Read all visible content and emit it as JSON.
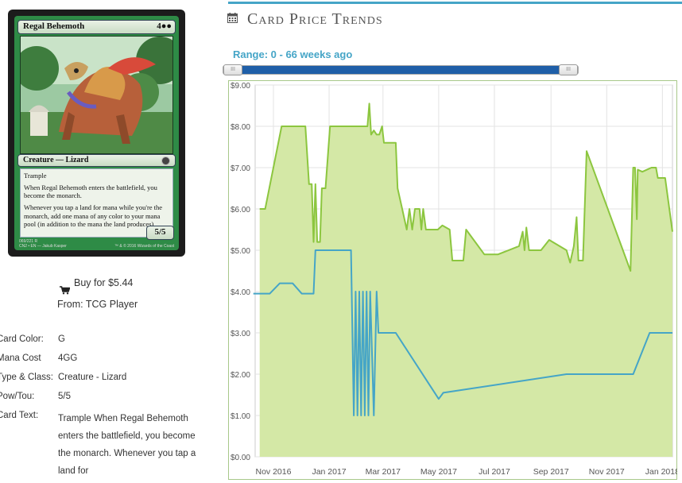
{
  "card": {
    "name": "Regal Behemoth",
    "mana": "4●●",
    "type_line": "Creature — Lizard",
    "rules": [
      "Trample",
      "When Regal Behemoth enters the battlefield, you become the monarch.",
      "Whenever you tap a land for mana while you're the monarch, add one mana of any color to your mana pool (in addition to the mana the land produces)."
    ],
    "pt": "5/5",
    "collector": "069/221 R",
    "set_line": "CN2 • EN — Jakub Kasper",
    "copyright": "™ & © 2016 Wizards of the Coast"
  },
  "buy": {
    "label": "Buy for $5.44",
    "from": "From: TCG Player"
  },
  "details": [
    {
      "label": "Card Color:",
      "value": "G"
    },
    {
      "label": "Mana Cost",
      "value": "4GG"
    },
    {
      "label": "Type & Class:",
      "value": "Creature - Lizard"
    },
    {
      "label": "Pow/Tou:",
      "value": "5/5"
    },
    {
      "label": "Card Text:",
      "value": "Trample When Regal Behemoth enters the battlefield, you become the monarch. Whenever you tap a land for"
    }
  ],
  "section_title": "Card Price Trends",
  "range": {
    "label": "Range: 0 - 66 weeks ago",
    "min": 0,
    "max": 66,
    "handle_glyph": "III"
  },
  "colors": {
    "accent": "#45a5c7",
    "green_line": "#8cc63f",
    "green_fill": "#d4e8a6",
    "blue_line": "#45a5c7",
    "slider": "#1f5fa8"
  },
  "chart_data": {
    "type": "area",
    "ylim": [
      0,
      9
    ],
    "yticks": [
      "$0.00",
      "$1.00",
      "$2.00",
      "$3.00",
      "$4.00",
      "$5.00",
      "$6.00",
      "$7.00",
      "$8.00",
      "$9.00"
    ],
    "xlim": [
      "2016-10-12",
      "2018-01-12"
    ],
    "xticks": [
      {
        "date": "2016-11-01",
        "label": "Nov 2016"
      },
      {
        "date": "2017-01-01",
        "label": "Jan 2017"
      },
      {
        "date": "2017-03-01",
        "label": "Mar 2017"
      },
      {
        "date": "2017-05-01",
        "label": "May 2017"
      },
      {
        "date": "2017-07-01",
        "label": "Jul 2017"
      },
      {
        "date": "2017-09-01",
        "label": "Sep 2017"
      },
      {
        "date": "2017-11-01",
        "label": "Nov 2017"
      },
      {
        "date": "2018-01-01",
        "label": "Jan 2018"
      }
    ],
    "grid": true,
    "series": [
      {
        "fill": true,
        "points": [
          [
            "2016-10-17",
            6.0
          ],
          [
            "2016-10-23",
            6.0
          ],
          [
            "2016-11-10",
            8.0
          ],
          [
            "2016-12-06",
            8.0
          ],
          [
            "2016-12-10",
            6.6
          ],
          [
            "2016-12-13",
            6.6
          ],
          [
            "2016-12-15",
            5.2
          ],
          [
            "2016-12-17",
            6.6
          ],
          [
            "2016-12-19",
            5.2
          ],
          [
            "2016-12-22",
            5.2
          ],
          [
            "2016-12-24",
            6.5
          ],
          [
            "2016-12-28",
            6.5
          ],
          [
            "2017-01-02",
            8.0
          ],
          [
            "2017-02-12",
            8.0
          ],
          [
            "2017-02-14",
            8.55
          ],
          [
            "2017-02-16",
            7.8
          ],
          [
            "2017-02-19",
            7.9
          ],
          [
            "2017-02-22",
            7.8
          ],
          [
            "2017-02-25",
            7.8
          ],
          [
            "2017-02-28",
            8.0
          ],
          [
            "2017-03-02",
            7.6
          ],
          [
            "2017-03-15",
            7.6
          ],
          [
            "2017-03-17",
            6.5
          ],
          [
            "2017-03-22",
            6.0
          ],
          [
            "2017-03-27",
            5.5
          ],
          [
            "2017-03-30",
            6.0
          ],
          [
            "2017-04-02",
            5.5
          ],
          [
            "2017-04-05",
            6.0
          ],
          [
            "2017-04-10",
            6.0
          ],
          [
            "2017-04-12",
            5.5
          ],
          [
            "2017-04-14",
            6.0
          ],
          [
            "2017-04-17",
            5.5
          ],
          [
            "2017-04-30",
            5.5
          ],
          [
            "2017-05-05",
            5.6
          ],
          [
            "2017-05-13",
            5.5
          ],
          [
            "2017-05-16",
            4.75
          ],
          [
            "2017-05-28",
            4.75
          ],
          [
            "2017-05-31",
            5.5
          ],
          [
            "2017-06-20",
            4.9
          ],
          [
            "2017-07-05",
            4.9
          ],
          [
            "2017-07-28",
            5.1
          ],
          [
            "2017-08-01",
            5.45
          ],
          [
            "2017-08-03",
            5.0
          ],
          [
            "2017-08-05",
            5.55
          ],
          [
            "2017-08-08",
            5.0
          ],
          [
            "2017-08-21",
            5.0
          ],
          [
            "2017-08-30",
            5.25
          ],
          [
            "2017-09-18",
            5.0
          ],
          [
            "2017-09-22",
            4.7
          ],
          [
            "2017-09-26",
            5.1
          ],
          [
            "2017-09-29",
            5.8
          ],
          [
            "2017-10-01",
            4.75
          ],
          [
            "2017-10-06",
            4.75
          ],
          [
            "2017-10-10",
            7.4
          ],
          [
            "2017-11-27",
            4.5
          ],
          [
            "2017-11-30",
            7.0
          ],
          [
            "2017-12-02",
            7.0
          ],
          [
            "2017-12-04",
            5.75
          ],
          [
            "2017-12-05",
            6.95
          ],
          [
            "2017-12-10",
            6.9
          ],
          [
            "2017-12-20",
            7.0
          ],
          [
            "2017-12-25",
            7.0
          ],
          [
            "2017-12-27",
            6.75
          ],
          [
            "2018-01-04",
            6.75
          ],
          [
            "2018-01-12",
            5.45
          ]
        ]
      },
      {
        "fill": false,
        "points": [
          [
            "2016-10-10",
            3.95
          ],
          [
            "2016-10-28",
            3.95
          ],
          [
            "2016-11-08",
            4.2
          ],
          [
            "2016-11-22",
            4.2
          ],
          [
            "2016-12-02",
            3.95
          ],
          [
            "2016-12-15",
            3.95
          ],
          [
            "2016-12-17",
            5.0
          ],
          [
            "2017-01-25",
            5.0
          ],
          [
            "2017-01-28",
            1.0
          ],
          [
            "2017-01-30",
            4.0
          ],
          [
            "2017-02-01",
            1.0
          ],
          [
            "2017-02-03",
            4.0
          ],
          [
            "2017-02-05",
            1.0
          ],
          [
            "2017-02-07",
            4.0
          ],
          [
            "2017-02-09",
            1.0
          ],
          [
            "2017-02-11",
            4.0
          ],
          [
            "2017-02-13",
            1.0
          ],
          [
            "2017-02-15",
            4.0
          ],
          [
            "2017-02-19",
            1.0
          ],
          [
            "2017-02-22",
            4.0
          ],
          [
            "2017-02-24",
            3.0
          ],
          [
            "2017-03-15",
            3.0
          ],
          [
            "2017-05-01",
            1.4
          ],
          [
            "2017-05-06",
            1.55
          ],
          [
            "2017-09-18",
            2.0
          ],
          [
            "2017-11-30",
            2.0
          ],
          [
            "2017-12-18",
            3.0
          ],
          [
            "2018-01-12",
            3.0
          ]
        ]
      }
    ]
  }
}
